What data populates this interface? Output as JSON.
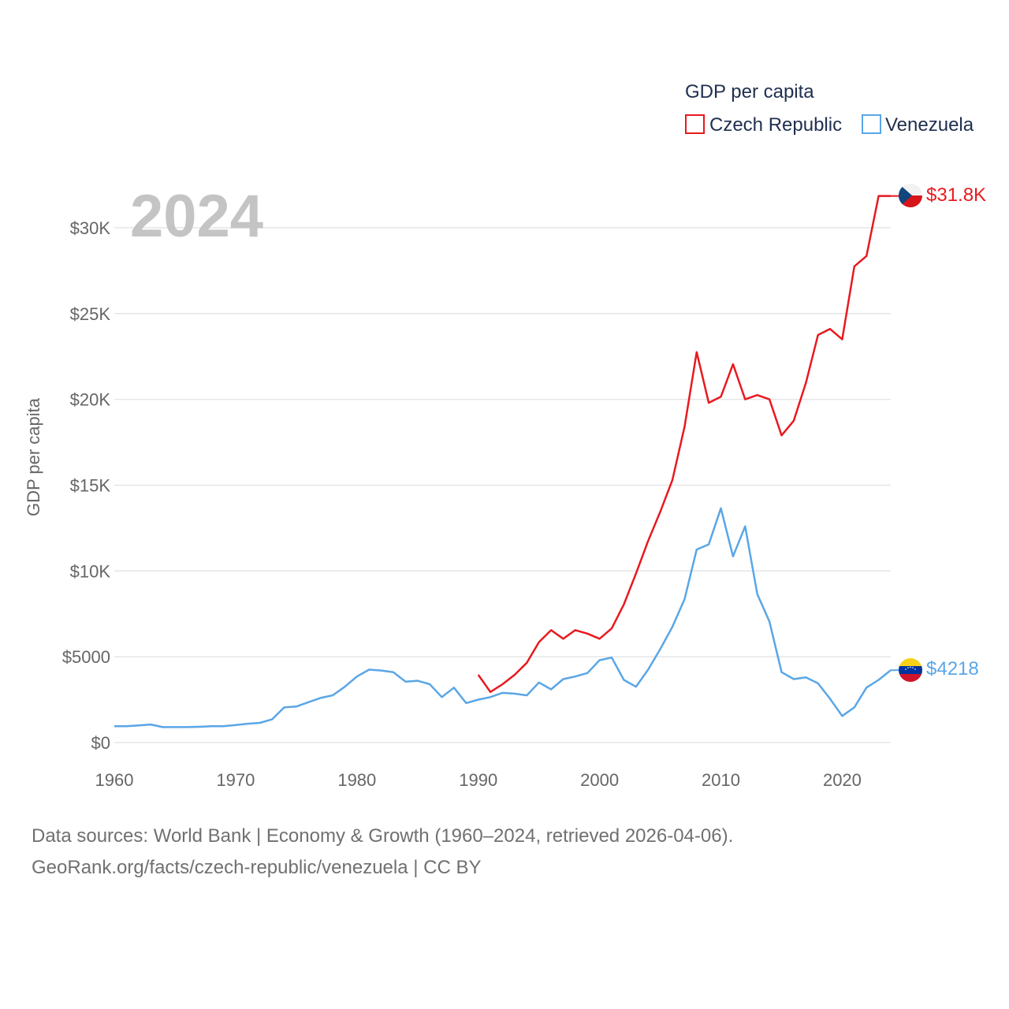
{
  "chart_data": {
    "type": "line",
    "year_label": "2024",
    "legend_title": "GDP per capita",
    "ylabel": "GDP per capita",
    "xlabel": "",
    "xlim": [
      1960,
      2024
    ],
    "ylim": [
      0,
      32000
    ],
    "x_ticks": [
      1960,
      1970,
      1980,
      1990,
      2000,
      2010,
      2020
    ],
    "x_tick_labels": [
      "1960",
      "1970",
      "1980",
      "1990",
      "2000",
      "2010",
      "2020"
    ],
    "y_ticks": [
      0,
      5000,
      10000,
      15000,
      20000,
      25000,
      30000
    ],
    "y_tick_labels": [
      "$0",
      "$5000",
      "$10K",
      "$15K",
      "$20K",
      "$25K",
      "$30K"
    ],
    "grid": true,
    "legend_position": "top-right",
    "series": [
      {
        "name": "Czech Republic",
        "color": "#e8191f",
        "end_label": "$31.8K",
        "flag": "czech-flag",
        "x": [
          1990,
          1991,
          1992,
          1993,
          1994,
          1995,
          1996,
          1997,
          1998,
          1999,
          2000,
          2001,
          2002,
          2003,
          2004,
          2005,
          2006,
          2007,
          2008,
          2009,
          2010,
          2011,
          2012,
          2013,
          2014,
          2015,
          2016,
          2017,
          2018,
          2019,
          2020,
          2021,
          2022,
          2023,
          2024
        ],
        "values": [
          3950,
          2950,
          3400,
          3950,
          4650,
          5850,
          6550,
          6050,
          6550,
          6350,
          6050,
          6650,
          8050,
          9850,
          11750,
          13450,
          15300,
          18400,
          22750,
          19800,
          20150,
          22050,
          20000,
          20250,
          20000,
          17900,
          18750,
          20950,
          23750,
          24100,
          23500,
          27750,
          28350,
          31850,
          31850
        ]
      },
      {
        "name": "Venezuela",
        "color": "#5aa6e6",
        "end_label": "$4218",
        "flag": "venezuela-flag",
        "x": [
          1960,
          1961,
          1962,
          1963,
          1964,
          1965,
          1966,
          1967,
          1968,
          1969,
          1970,
          1971,
          1972,
          1973,
          1974,
          1975,
          1976,
          1977,
          1978,
          1979,
          1980,
          1981,
          1982,
          1983,
          1984,
          1985,
          1986,
          1987,
          1988,
          1989,
          1990,
          1991,
          1992,
          1993,
          1994,
          1995,
          1996,
          1997,
          1998,
          1999,
          2000,
          2001,
          2002,
          2003,
          2004,
          2005,
          2006,
          2007,
          2008,
          2009,
          2010,
          2011,
          2012,
          2013,
          2014,
          2015,
          2016,
          2017,
          2018,
          2019,
          2020,
          2021,
          2022,
          2023,
          2024
        ],
        "values": [
          950,
          950,
          1000,
          1050,
          900,
          900,
          900,
          920,
          950,
          950,
          1020,
          1100,
          1150,
          1350,
          2050,
          2100,
          2350,
          2600,
          2750,
          3250,
          3850,
          4250,
          4200,
          4100,
          3550,
          3600,
          3400,
          2650,
          3200,
          2300,
          2500,
          2650,
          2900,
          2850,
          2750,
          3500,
          3100,
          3700,
          3850,
          4050,
          4800,
          4950,
          3650,
          3250,
          4250,
          5450,
          6750,
          8350,
          11250,
          11550,
          13650,
          10850,
          12600,
          8650,
          7050,
          4100,
          3700,
          3800,
          3450,
          2550,
          1550,
          2050,
          3200,
          3650,
          4218
        ]
      }
    ]
  },
  "footer": {
    "line1": "Data sources: World Bank | Economy & Growth (1960–2024, retrieved 2026-04-06).",
    "line2": "GeoRank.org/facts/czech-republic/venezuela | CC BY"
  }
}
